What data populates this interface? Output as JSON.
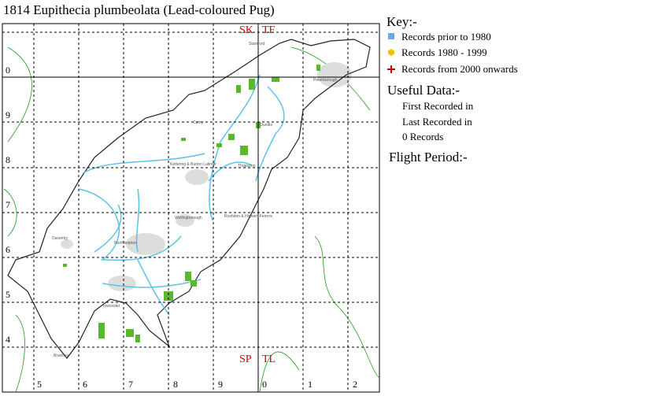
{
  "title": "1814 Eupithecia plumbeolata (Lead-coloured Pug)",
  "grid": {
    "squares": [
      "SK",
      "TF",
      "SP",
      "TL"
    ],
    "row_labels": [
      "0",
      "9",
      "8",
      "7",
      "6",
      "5",
      "4"
    ],
    "col_labels": [
      "5",
      "6",
      "7",
      "8",
      "9",
      "0",
      "1",
      "2"
    ]
  },
  "places": [
    "Stamford",
    "Peterborough",
    "Oundle",
    "Corby",
    "Kettering & Burton Latimer",
    "Thrapston",
    "Wellingborough",
    "Rushden & Higham Ferrers",
    "Daventry",
    "Northampton",
    "Towcester",
    "Brackley"
  ],
  "key": {
    "heading": "Key:-",
    "items": [
      "Records prior to 1980",
      "Records 1980 - 1999",
      "Records from 2000 onwards"
    ]
  },
  "useful_data": {
    "heading": "Useful Data:-",
    "lines": [
      "First Recorded in",
      "Last Recorded in",
      "0 Records"
    ]
  },
  "flight_period": {
    "heading": "Flight Period:-"
  }
}
